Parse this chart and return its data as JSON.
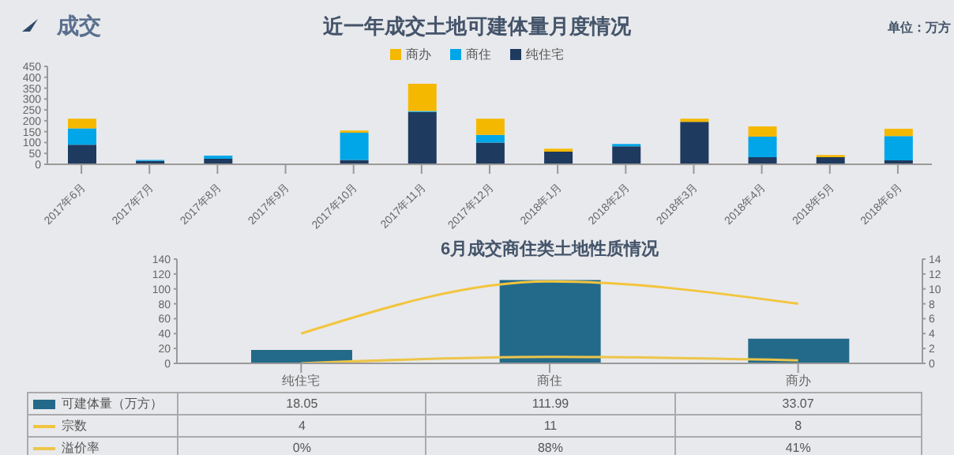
{
  "chart_data": [
    {
      "type": "bar",
      "title": "近一年成交土地可建体量月度情况",
      "annotations": [
        "成交",
        "单位：万方"
      ],
      "stacked": true,
      "legend": "top",
      "grid": false,
      "categories": [
        "2017年6月",
        "2017年7月",
        "2017年8月",
        "2017年9月",
        "2017年10月",
        "2017年11月",
        "2017年12月",
        "2018年1月",
        "2018年2月",
        "2018年3月",
        "2018年4月",
        "2018年5月",
        "2018年6月"
      ],
      "ylim": [
        0,
        450
      ],
      "yticks": [
        0,
        50,
        100,
        150,
        200,
        250,
        300,
        350,
        400,
        450
      ],
      "series": [
        {
          "name": "纯住宅",
          "color": "#1e3a5f",
          "values": [
            90,
            15,
            25,
            0,
            20,
            240,
            100,
            58,
            83,
            195,
            33,
            33,
            18
          ]
        },
        {
          "name": "商住",
          "color": "#00a6e8",
          "values": [
            75,
            5,
            15,
            0,
            125,
            5,
            35,
            0,
            10,
            0,
            94,
            0,
            112
          ]
        },
        {
          "name": "商办",
          "color": "#f5b800",
          "values": [
            45,
            0,
            0,
            0,
            10,
            125,
            75,
            14,
            null,
            15,
            47,
            10,
            33
          ]
        }
      ]
    },
    {
      "type": "bar",
      "title": "6月成交商住类土地性质情况",
      "legend": "left",
      "grid": false,
      "marker": "none",
      "categories": [
        "纯住宅",
        "商住",
        "商办"
      ],
      "ylim": [
        0,
        140
      ],
      "yticks": [
        0,
        20,
        40,
        60,
        80,
        100,
        120,
        140
      ],
      "y2lim": [
        0,
        14
      ],
      "y2ticks": [
        0,
        2,
        4,
        6,
        8,
        10,
        12,
        14
      ],
      "series": [
        {
          "name": "可建体量（万方）",
          "color": "#236a8a",
          "values": [
            18.05,
            111.99,
            33.07
          ],
          "value_labels": [
            "18.05",
            "111.99",
            "33.07"
          ]
        },
        {
          "name": "宗数",
          "type": "line",
          "axis": "y2",
          "color": "#f2c53d",
          "values": [
            4,
            11,
            8
          ],
          "value_labels": [
            "4",
            "11",
            "8"
          ]
        },
        {
          "name": "溢价率",
          "type": "line",
          "axis": "y2",
          "color": "#edc54a",
          "values": [
            0,
            0.88,
            0.41
          ],
          "value_labels": [
            "0%",
            "88%",
            "41%"
          ]
        }
      ]
    }
  ]
}
